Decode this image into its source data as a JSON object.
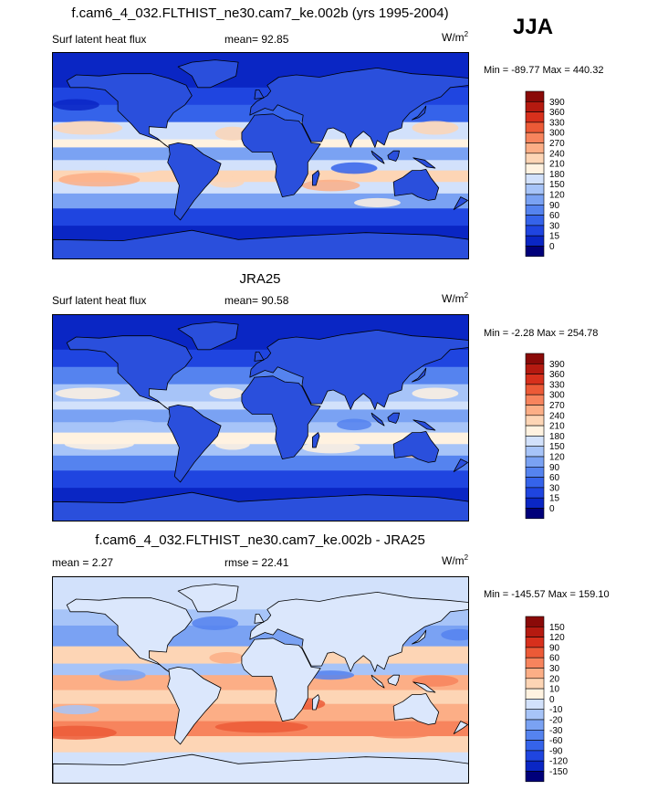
{
  "season": "JJA",
  "colors": {
    "abs_scale": [
      "#00007a",
      "#0a26c4",
      "#1f45e0",
      "#3563ea",
      "#5583ef",
      "#7aa2f3",
      "#a7c4f8",
      "#d2e1fb",
      "#fff2e0",
      "#fdd5b5",
      "#fcae86",
      "#f7845d",
      "#ec5a37",
      "#d7301c",
      "#b51a10",
      "#8a0a08"
    ],
    "diff_scale": [
      "#00007a",
      "#0a26c4",
      "#1f45e0",
      "#3563ea",
      "#5583ef",
      "#7aa2f3",
      "#a7c4f8",
      "#d2e1fb",
      "#fff2e0",
      "#fdd5b5",
      "#fcae86",
      "#f7845d",
      "#ec5a37",
      "#d7301c",
      "#b51a10",
      "#8a0a08"
    ],
    "land_abs": "#2a4fdc",
    "land_diff": "#dbe7fc"
  },
  "panels": [
    {
      "title": "f.cam6_4_032.FLTHIST_ne30.cam7_ke.002b (yrs 1995-2004)",
      "left_label": "Surf latent heat flux",
      "center_label": "mean=  92.85",
      "units": "W/m",
      "units_sup": "2",
      "minmax": "Min = -89.77 Max = 440.32",
      "levels": [
        "390",
        "360",
        "330",
        "300",
        "270",
        "240",
        "210",
        "180",
        "150",
        "120",
        "90",
        "60",
        "30",
        "15",
        "0"
      ],
      "variant": "model"
    },
    {
      "title": "JRA25",
      "left_label": "Surf latent heat flux",
      "center_label": "mean=  90.58",
      "units": "W/m",
      "units_sup": "2",
      "minmax": "Min =  -2.28 Max = 254.78",
      "levels": [
        "390",
        "360",
        "330",
        "300",
        "270",
        "240",
        "210",
        "180",
        "150",
        "120",
        "90",
        "60",
        "30",
        "15",
        "0"
      ],
      "variant": "obs"
    },
    {
      "title": "f.cam6_4_032.FLTHIST_ne30.cam7_ke.002b - JRA25",
      "left_label": "mean =   2.27",
      "center_label": "rmse =  22.41",
      "units": "W/m",
      "units_sup": "2",
      "minmax": "Min = -145.57 Max = 159.10",
      "levels": [
        "150",
        "120",
        "90",
        "60",
        "30",
        "20",
        "10",
        "0",
        "-10",
        "-20",
        "-30",
        "-60",
        "-90",
        "-120",
        "-150"
      ],
      "variant": "diff"
    }
  ],
  "chart_data": [
    {
      "type": "heatmap",
      "title": "f.cam6_4_032.FLTHIST_ne30.cam7_ke.002b (yrs 1995-2004)",
      "variable": "Surf latent heat flux",
      "units": "W/m2",
      "mean": 92.85,
      "min": -89.77,
      "max": 440.32,
      "contour_levels": [
        0,
        15,
        30,
        60,
        90,
        120,
        150,
        180,
        210,
        240,
        270,
        300,
        330,
        360,
        390
      ]
    },
    {
      "type": "heatmap",
      "title": "JRA25",
      "variable": "Surf latent heat flux",
      "units": "W/m2",
      "mean": 90.58,
      "min": -2.28,
      "max": 254.78,
      "contour_levels": [
        0,
        15,
        30,
        60,
        90,
        120,
        150,
        180,
        210,
        240,
        270,
        300,
        330,
        360,
        390
      ]
    },
    {
      "type": "heatmap",
      "title": "f.cam6_4_032.FLTHIST_ne30.cam7_ke.002b - JRA25",
      "units": "W/m2",
      "mean": 2.27,
      "rmse": 22.41,
      "min": -145.57,
      "max": 159.1,
      "contour_levels": [
        -150,
        -120,
        -90,
        -60,
        -30,
        -20,
        -10,
        0,
        10,
        20,
        30,
        60,
        90,
        120,
        150
      ]
    }
  ]
}
